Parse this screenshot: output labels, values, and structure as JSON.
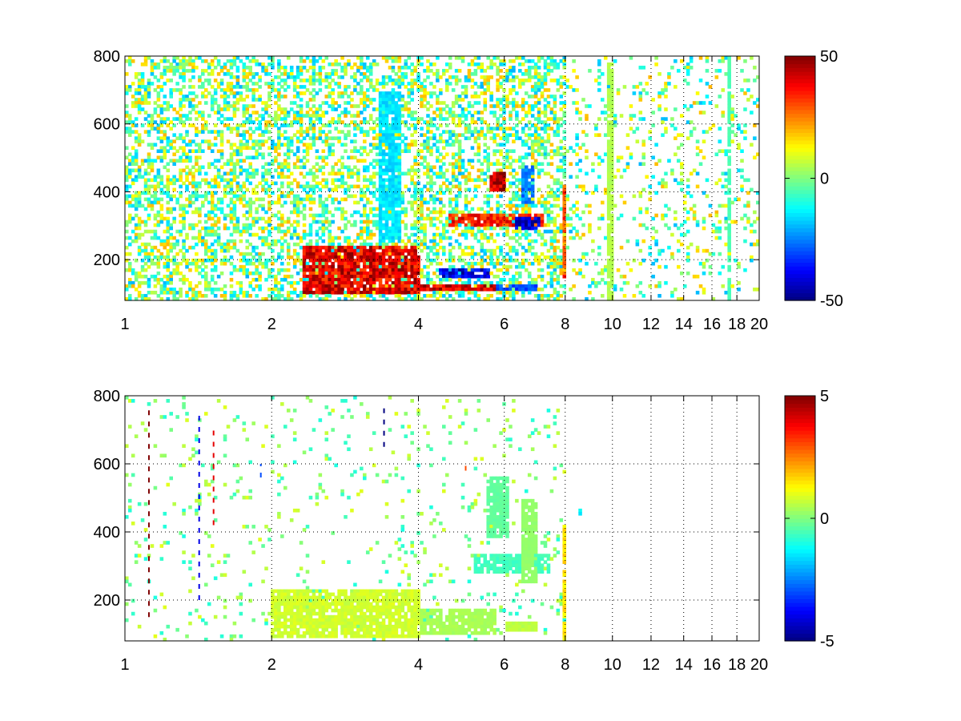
{
  "figure": {
    "background": "#ffffff"
  },
  "chart_data": [
    {
      "type": "heatmap",
      "title": "",
      "xlabel": "",
      "ylabel": "",
      "x_scale": "log",
      "xlim": [
        1,
        20
      ],
      "ylim": [
        80,
        800
      ],
      "x_ticks": [
        1,
        2,
        4,
        6,
        8,
        10,
        12,
        14,
        16,
        18,
        20
      ],
      "x_tick_labels": [
        "1",
        "2",
        "4",
        "6",
        "8",
        "10",
        "12",
        "14",
        "16",
        "18",
        "20"
      ],
      "y_ticks": [
        200,
        400,
        600,
        800
      ],
      "y_tick_labels": [
        "200",
        "400",
        "600",
        "800"
      ],
      "grid": true,
      "colormap": "jet",
      "clim": [
        -50,
        50
      ],
      "colorbar_ticks": [
        -50,
        0,
        50
      ],
      "colorbar_tick_labels": [
        "-50",
        "0",
        "50"
      ],
      "features": [
        {
          "x": [
            2.3,
            4.0
          ],
          "y": [
            100,
            240
          ],
          "value": 40
        },
        {
          "x": [
            4.0,
            5.8
          ],
          "y": [
            110,
            130
          ],
          "value": 42
        },
        {
          "x": [
            4.4,
            5.6
          ],
          "y": [
            150,
            170
          ],
          "value": -40
        },
        {
          "x": [
            5.8,
            7.0
          ],
          "y": [
            110,
            125
          ],
          "value": -30
        },
        {
          "x": [
            4.6,
            7.2
          ],
          "y": [
            300,
            340
          ],
          "value": 35
        },
        {
          "x": [
            6.3,
            7.1
          ],
          "y": [
            290,
            330
          ],
          "value": -45
        },
        {
          "x": [
            5.6,
            6.0
          ],
          "y": [
            400,
            460
          ],
          "value": 45
        },
        {
          "x": [
            6.5,
            6.9
          ],
          "y": [
            360,
            480
          ],
          "value": -25
        },
        {
          "x": [
            3.3,
            3.7
          ],
          "y": [
            250,
            700
          ],
          "value": -15
        },
        {
          "x": [
            7.95,
            8.0
          ],
          "y": [
            150,
            420
          ],
          "value": 30
        },
        {
          "x": [
            9.8,
            10.0
          ],
          "y": [
            80,
            780
          ],
          "value": 5
        },
        {
          "x": [
            17.2,
            17.6
          ],
          "y": [
            80,
            800
          ],
          "value": -5
        }
      ],
      "noise_value_range": [
        -20,
        20
      ],
      "noise_density": {
        "x_lt_8": 0.45,
        "x_ge_8": 0.14
      }
    },
    {
      "type": "heatmap",
      "title": "",
      "xlabel": "",
      "ylabel": "",
      "x_scale": "log",
      "xlim": [
        1,
        20
      ],
      "ylim": [
        80,
        800
      ],
      "x_ticks": [
        1,
        2,
        4,
        6,
        8,
        10,
        12,
        14,
        16,
        18,
        20
      ],
      "x_tick_labels": [
        "1",
        "2",
        "4",
        "6",
        "8",
        "10",
        "12",
        "14",
        "16",
        "18",
        "20"
      ],
      "y_ticks": [
        200,
        400,
        600,
        800
      ],
      "y_tick_labels": [
        "200",
        "400",
        "600",
        "800"
      ],
      "grid": true,
      "colormap": "jet",
      "clim": [
        -5,
        5
      ],
      "colorbar_ticks": [
        -5,
        0,
        5
      ],
      "colorbar_tick_labels": [
        "-5",
        "0",
        "5"
      ],
      "features": [
        {
          "x": [
            2.0,
            4.0
          ],
          "y": [
            90,
            230
          ],
          "value": 0.8
        },
        {
          "x": [
            4.0,
            5.8
          ],
          "y": [
            100,
            170
          ],
          "value": 0.4
        },
        {
          "x": [
            6.0,
            7.0
          ],
          "y": [
            110,
            140
          ],
          "value": 0.6
        },
        {
          "x": [
            5.2,
            7.4
          ],
          "y": [
            280,
            340
          ],
          "value": -0.6
        },
        {
          "x": [
            5.5,
            6.1
          ],
          "y": [
            380,
            560
          ],
          "value": -0.3
        },
        {
          "x": [
            6.5,
            7.0
          ],
          "y": [
            250,
            500
          ],
          "value": 0.2
        },
        {
          "x": [
            7.95,
            8.0
          ],
          "y": [
            80,
            440
          ],
          "value": 1.5
        },
        {
          "x": [
            8.5,
            8.6
          ],
          "y": [
            450,
            470
          ],
          "value": -1.5
        }
      ],
      "streaks": [
        {
          "x": 1.12,
          "y": [
            150,
            760
          ],
          "value": 5
        },
        {
          "x": 1.42,
          "y": [
            200,
            760
          ],
          "value": -4
        },
        {
          "x": 1.52,
          "y": [
            420,
            710
          ],
          "value": 4
        },
        {
          "x": 1.9,
          "y": [
            560,
            600
          ],
          "value": -3
        },
        {
          "x": 3.4,
          "y": [
            650,
            780
          ],
          "value": -5
        },
        {
          "x": 5.0,
          "y": [
            580,
            600
          ],
          "value": 3
        }
      ],
      "noise_value_range": [
        -1,
        1
      ],
      "noise_density": {
        "x_lt_8": 0.05,
        "x_ge_8": 0.0
      }
    }
  ]
}
